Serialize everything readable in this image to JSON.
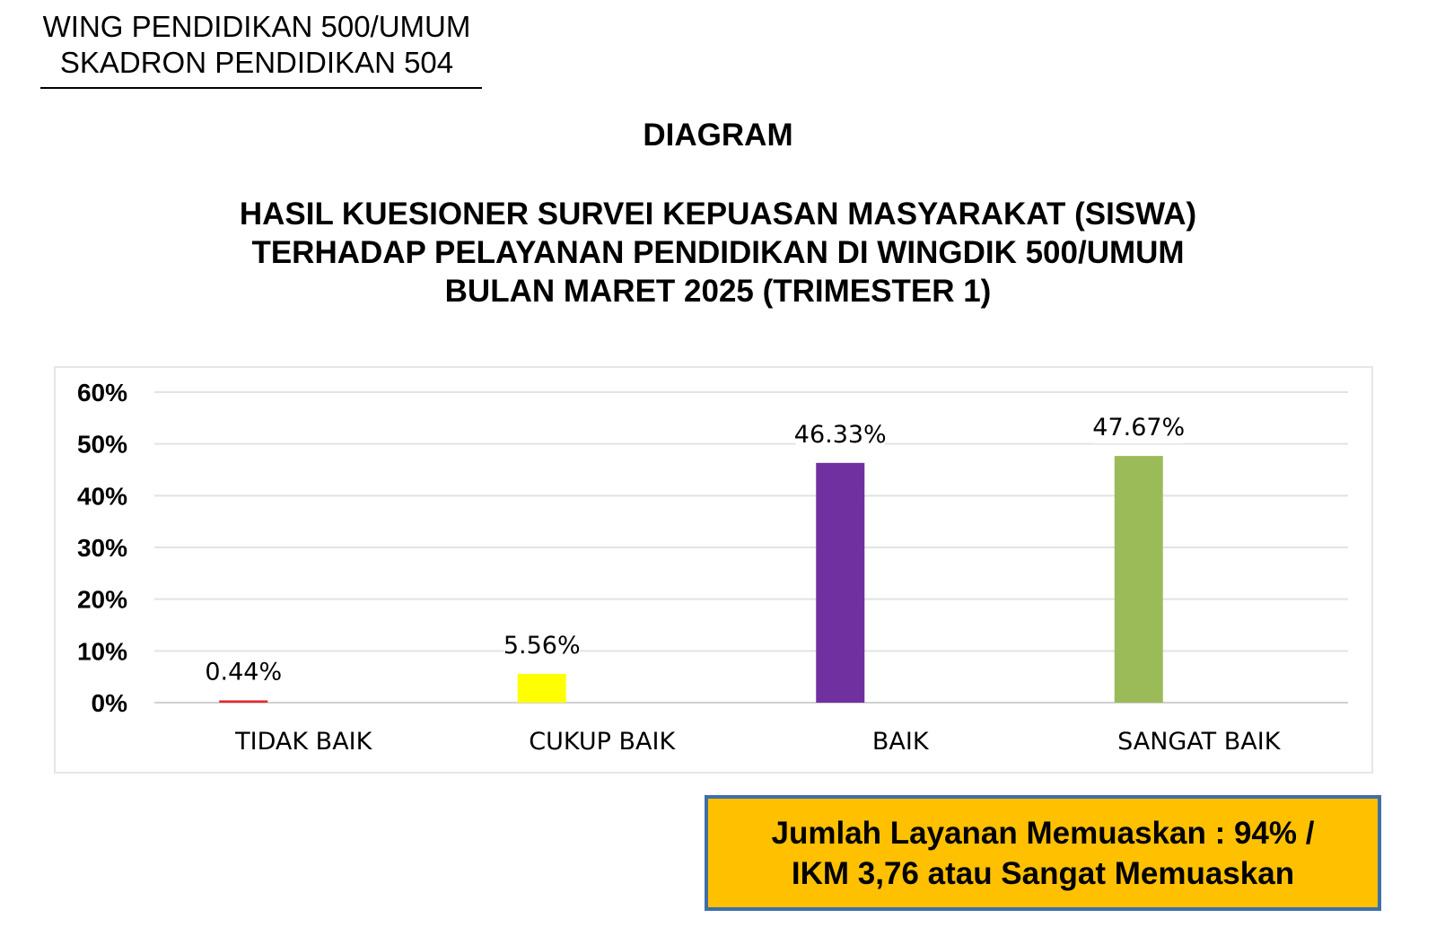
{
  "header": {
    "org_line1": "WING PENDIDIKAN 500/UMUM",
    "org_line2": "SKADRON PENDIDIKAN 504"
  },
  "title": {
    "label": "DIAGRAM",
    "line1": "HASIL KUESIONER SURVEI KEPUASAN MASYARAKAT (SISWA)",
    "line2": "TERHADAP PELAYANAN PENDIDIKAN DI WINGDIK 500/UMUM",
    "line3": "BULAN MARET 2025 (TRIMESTER 1)"
  },
  "chart_data": {
    "type": "bar",
    "categories": [
      "TIDAK BAIK",
      "CUKUP BAIK",
      "BAIK",
      "SANGAT BAIK"
    ],
    "values": [
      0.44,
      5.56,
      46.33,
      47.67
    ],
    "data_labels": [
      "0.44%",
      "5.56%",
      "46.33%",
      "47.67%"
    ],
    "bar_colors": [
      "#e8262a",
      "#ffff00",
      "#7030a0",
      "#9bbb59"
    ],
    "ylim": [
      0,
      60
    ],
    "yticks": [
      0,
      10,
      20,
      30,
      40,
      50,
      60
    ],
    "ytick_labels": [
      "0%",
      "10%",
      "20%",
      "30%",
      "40%",
      "50%",
      "60%"
    ],
    "grid": true,
    "title": "",
    "xlabel": "",
    "ylabel": ""
  },
  "summary": {
    "line1": "Jumlah Layanan Memuaskan : 94% /",
    "line2": "IKM 3,76 atau Sangat Memuaskan",
    "background_color": "#ffc000",
    "border_color": "#3e6fa8"
  }
}
